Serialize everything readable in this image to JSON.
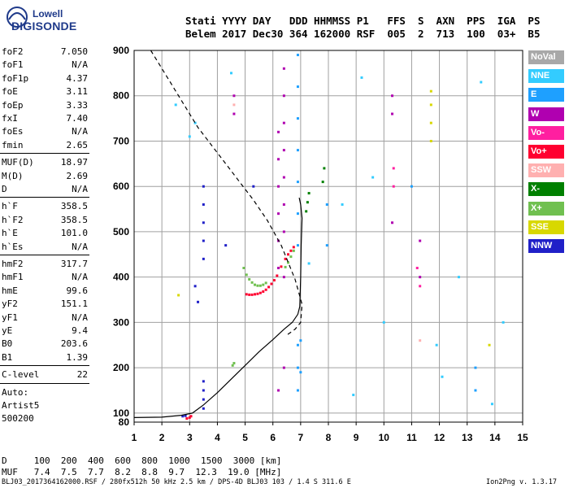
{
  "logo": {
    "line1": "Lowell",
    "line2": "DIGISONDE"
  },
  "header": {
    "line1": "Stati YYYY DAY   DDD HHMMSS P1   FFS  S  AXN  PPS  IGA  PS",
    "line2": "Belem 2017 Dec30 364 162000 RSF  005  2  713  100  03+  B5"
  },
  "scaled": {
    "group1": [
      {
        "k": "foF2",
        "v": "7.050"
      },
      {
        "k": "foF1",
        "v": "N/A"
      },
      {
        "k": "foF1p",
        "v": "4.37"
      },
      {
        "k": "foE",
        "v": "3.11"
      },
      {
        "k": "foEp",
        "v": "3.33"
      },
      {
        "k": "fxI",
        "v": "7.40"
      },
      {
        "k": "foEs",
        "v": "N/A"
      },
      {
        "k": "fmin",
        "v": "2.65"
      }
    ],
    "group2": [
      {
        "k": "MUF(D)",
        "v": "18.97"
      },
      {
        "k": "M(D)",
        "v": "2.69"
      },
      {
        "k": "D",
        "v": "N/A"
      }
    ],
    "group3": [
      {
        "k": "h`F",
        "v": "358.5"
      },
      {
        "k": "h`F2",
        "v": "358.5"
      },
      {
        "k": "h`E",
        "v": "101.0"
      },
      {
        "k": "h`Es",
        "v": "N/A"
      }
    ],
    "group4": [
      {
        "k": "hmF2",
        "v": "317.7"
      },
      {
        "k": "hmF1",
        "v": "N/A"
      },
      {
        "k": "hmE",
        "v": "99.6"
      },
      {
        "k": "yF2",
        "v": "151.1"
      },
      {
        "k": "yF1",
        "v": "N/A"
      },
      {
        "k": "yE",
        "v": "9.4"
      },
      {
        "k": "B0",
        "v": "203.6"
      },
      {
        "k": "B1",
        "v": "1.39"
      }
    ],
    "group5": [
      {
        "k": "C-level",
        "v": "22"
      }
    ],
    "group6": [
      {
        "k": "Auto:",
        "v": ""
      },
      {
        "k": "Artist5",
        "v": ""
      },
      {
        "k": "500200",
        "v": ""
      }
    ]
  },
  "legend": [
    {
      "label": "NoVal",
      "color": "#a8a8a8"
    },
    {
      "label": "NNE",
      "color": "#33ccff"
    },
    {
      "label": "E",
      "color": "#1ea0ff"
    },
    {
      "label": "W",
      "color": "#b000b0"
    },
    {
      "label": "Vo-",
      "color": "#ff1fa0"
    },
    {
      "label": "Vo+",
      "color": "#ff0030"
    },
    {
      "label": "SSW",
      "color": "#ffb0b0"
    },
    {
      "label": "X-",
      "color": "#008000"
    },
    {
      "label": "X+",
      "color": "#70c050"
    },
    {
      "label": "SSE",
      "color": "#d8d800"
    },
    {
      "label": "NNW",
      "color": "#2020c8"
    }
  ],
  "footer": {
    "d_line": "D     100  200  400  600  800  1000  1500  3000 [km]",
    "muf_line": "MUF   7.4  7.5  7.7  8.2  8.8  9.7  12.3  19.0 [MHz]",
    "source": "BLJ03_2017364162000.RSF / 280fx512h 50 kHz 2.5 km / DPS-4D BLJ03 103 / 1.4 S 311.6 E",
    "version": "Ion2Png v. 1.3.17"
  },
  "chart_data": {
    "type": "scatter",
    "xlim": [
      1,
      15
    ],
    "ylim": [
      80,
      900
    ],
    "xticks": [
      "1",
      "2",
      "3",
      "4",
      "5",
      "6",
      "7",
      "8",
      "9",
      "10",
      "11",
      "12",
      "13",
      "14",
      "15"
    ],
    "yticks": [
      "100",
      "200",
      "300",
      "400",
      "500",
      "600",
      "700",
      "800",
      "900"
    ],
    "ytick_values": [
      100,
      200,
      300,
      400,
      500,
      600,
      700,
      800,
      900
    ],
    "grid": true,
    "profile_curve": {
      "x": [
        1.0,
        2.0,
        2.7,
        3.1,
        3.5,
        4.0,
        4.5,
        5.0,
        5.5,
        6.0,
        6.4,
        6.7,
        6.9,
        6.97,
        7.0,
        7.02,
        7.05,
        7.0,
        6.95
      ],
      "y": [
        90,
        91,
        95,
        100,
        118,
        145,
        175,
        205,
        235,
        262,
        285,
        300,
        318,
        335,
        400,
        470,
        530,
        560,
        575
      ]
    },
    "dashed_curve": {
      "x": [
        1.6,
        2.2,
        2.8,
        3.3,
        3.8,
        4.3,
        4.8,
        5.3,
        5.8,
        6.3,
        6.8,
        7.05,
        7.0,
        6.8,
        6.5
      ],
      "y": [
        900,
        840,
        780,
        730,
        690,
        650,
        610,
        570,
        525,
        470,
        395,
        340,
        300,
        285,
        272
      ]
    },
    "traces": [
      {
        "name": "Vo+",
        "color": "#ff0030",
        "x": [
          5.05,
          5.15,
          5.25,
          5.35,
          5.45,
          5.55,
          5.65,
          5.75,
          5.85,
          5.95,
          6.05,
          6.15,
          6.3,
          6.45,
          6.55,
          6.65,
          6.75,
          2.9,
          3.0,
          3.05
        ],
        "y": [
          362,
          361,
          361,
          362,
          363,
          365,
          368,
          372,
          378,
          385,
          393,
          403,
          423,
          440,
          450,
          458,
          466,
          88,
          90,
          93
        ]
      },
      {
        "name": "X+",
        "color": "#70c050",
        "x": [
          4.95,
          5.05,
          5.15,
          5.25,
          5.35,
          5.45,
          5.55,
          5.65,
          5.75,
          6.45,
          6.55,
          6.65,
          6.75,
          4.55,
          4.6
        ],
        "y": [
          420,
          405,
          395,
          388,
          383,
          381,
          381,
          383,
          387,
          422,
          432,
          445,
          458,
          205,
          210
        ]
      },
      {
        "name": "X-",
        "color": "#008000",
        "x": [
          7.2,
          7.25,
          7.3,
          7.8,
          7.85
        ],
        "y": [
          545,
          565,
          585,
          610,
          640
        ]
      },
      {
        "name": "NNW",
        "color": "#2020c8",
        "x": [
          3.5,
          3.5,
          3.5,
          3.5,
          3.5,
          3.5,
          3.5,
          3.5,
          3.5,
          2.75,
          2.85,
          3.2,
          3.3,
          4.3,
          5.3
        ],
        "y": [
          600,
          560,
          520,
          480,
          440,
          170,
          150,
          130,
          110,
          93,
          94,
          380,
          345,
          470,
          600
        ]
      },
      {
        "name": "W",
        "color": "#b000b0",
        "x": [
          6.2,
          6.2,
          6.2,
          6.2,
          6.2,
          6.2,
          6.2,
          6.4,
          6.4,
          6.4,
          6.4,
          6.4,
          6.4,
          6.4,
          6.4,
          6.4,
          10.3,
          10.3,
          10.3,
          11.3,
          11.3,
          4.6,
          4.6
        ],
        "y": [
          720,
          660,
          600,
          540,
          480,
          420,
          150,
          860,
          800,
          740,
          680,
          620,
          560,
          500,
          400,
          200,
          800,
          760,
          520,
          480,
          400,
          800,
          760
        ]
      },
      {
        "name": "E",
        "color": "#1ea0ff",
        "x": [
          6.9,
          6.9,
          6.9,
          6.9,
          6.9,
          6.9,
          6.9,
          6.9,
          6.9,
          6.9,
          7.0,
          7.0,
          7.95,
          7.95,
          11.0,
          13.3,
          13.3
        ],
        "y": [
          890,
          820,
          750,
          680,
          610,
          540,
          470,
          250,
          200,
          150,
          260,
          190,
          560,
          470,
          600,
          200,
          150
        ]
      },
      {
        "name": "NNE",
        "color": "#33ccff",
        "x": [
          2.5,
          3.0,
          3.2,
          4.5,
          7.3,
          8.5,
          8.9,
          9.2,
          9.6,
          10.0,
          11.9,
          12.1,
          12.7,
          13.5,
          13.9,
          14.3
        ],
        "y": [
          780,
          710,
          740,
          850,
          430,
          560,
          140,
          840,
          620,
          300,
          250,
          180,
          400,
          830,
          120,
          300
        ]
      },
      {
        "name": "SSE",
        "color": "#d8d800",
        "x": [
          11.7,
          11.7,
          11.7,
          11.7,
          13.8,
          2.6
        ],
        "y": [
          810,
          780,
          740,
          700,
          250,
          360
        ]
      },
      {
        "name": "Vo-",
        "color": "#ff1fa0",
        "x": [
          10.35,
          10.35,
          11.2,
          11.3
        ],
        "y": [
          640,
          600,
          420,
          380
        ]
      },
      {
        "name": "SSW",
        "color": "#ffb0b0",
        "x": [
          4.6,
          11.3
        ],
        "y": [
          780,
          260
        ]
      }
    ]
  }
}
